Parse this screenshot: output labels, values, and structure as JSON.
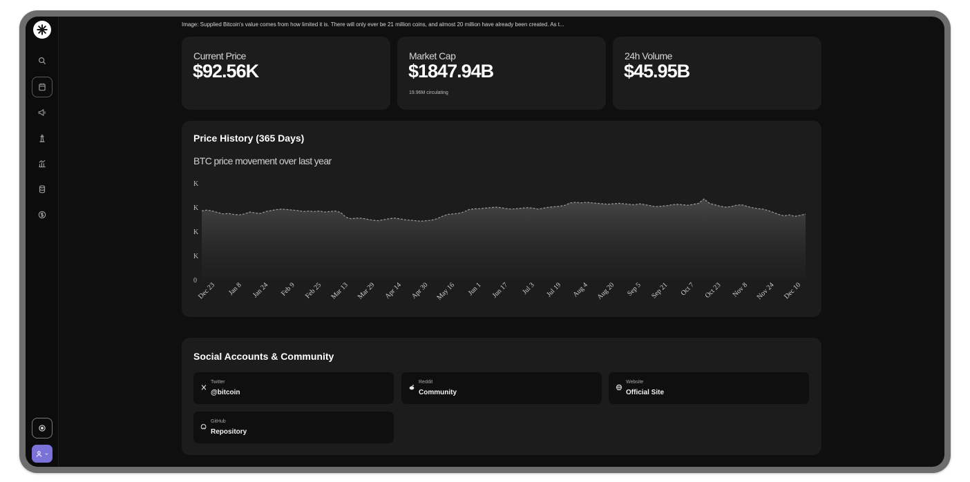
{
  "caption": "Image: Supplied Bitcoin's value comes from how limited it is. There will only ever be 21 million coins, and almost 20 million have already been created. As t...",
  "stats": [
    {
      "label": "Current Price",
      "value": "$92.56K",
      "sub": ""
    },
    {
      "label": "Market Cap",
      "value": "$1847.94B",
      "sub": "19.96M circulating"
    },
    {
      "label": "24h Volume",
      "value": "$45.95B",
      "sub": ""
    }
  ],
  "price_history": {
    "title": "Price History (365 Days)",
    "subtitle": "BTC price movement over last year"
  },
  "chart_data": {
    "type": "area",
    "y_tick_labels": [
      "K",
      "K",
      "K",
      "K",
      "0"
    ],
    "x_tick_labels": [
      "Dec 23",
      "Jan 8",
      "Jan 24",
      "Feb 9",
      "Feb 25",
      "Mar 13",
      "Mar 29",
      "Apr 14",
      "Apr 30",
      "May 16",
      "Jun 1",
      "Jun 17",
      "Jul 3",
      "Jul 19",
      "Aug 4",
      "Aug 20",
      "Sep 5",
      "Sep 21",
      "Oct 7",
      "Oct 23",
      "Nov 8",
      "Nov 24",
      "Dec 10"
    ],
    "ylim": [
      0,
      4
    ],
    "grid": false,
    "series": [
      {
        "values": [
          2.85,
          2.88,
          2.84,
          2.78,
          2.72,
          2.74,
          2.7,
          2.68,
          2.72,
          2.8,
          2.76,
          2.74,
          2.82,
          2.86,
          2.9,
          2.92,
          2.9,
          2.88,
          2.86,
          2.82,
          2.84,
          2.82,
          2.84,
          2.8,
          2.82,
          2.84,
          2.78,
          2.58,
          2.52,
          2.55,
          2.54,
          2.5,
          2.46,
          2.44,
          2.48,
          2.52,
          2.55,
          2.52,
          2.48,
          2.46,
          2.44,
          2.42,
          2.44,
          2.46,
          2.52,
          2.62,
          2.7,
          2.72,
          2.74,
          2.8,
          2.9,
          2.93,
          2.94,
          2.96,
          2.98,
          3.0,
          2.98,
          2.94,
          2.92,
          2.94,
          2.96,
          2.98,
          2.96,
          2.92,
          2.96,
          3.0,
          3.02,
          3.04,
          3.08,
          3.18,
          3.2,
          3.18,
          3.2,
          3.18,
          3.16,
          3.14,
          3.12,
          3.14,
          3.16,
          3.14,
          3.12,
          3.1,
          3.14,
          3.1,
          3.06,
          3.02,
          3.04,
          3.06,
          3.1,
          3.12,
          3.1,
          3.08,
          3.12,
          3.16,
          3.34,
          3.16,
          3.1,
          3.04,
          3.0,
          3.02,
          3.08,
          3.1,
          3.04,
          2.98,
          2.94,
          2.92,
          2.86,
          2.78,
          2.7,
          2.64,
          2.68,
          2.62,
          2.66,
          2.72
        ]
      }
    ]
  },
  "social": {
    "title": "Social Accounts & Community",
    "items": [
      {
        "icon": "x-icon",
        "label": "Twitter",
        "value": "@bitcoin"
      },
      {
        "icon": "reddit-icon",
        "label": "Reddit",
        "value": "Community"
      },
      {
        "icon": "globe-icon",
        "label": "Website",
        "value": "Official Site"
      },
      {
        "icon": "github-icon",
        "label": "GitHub",
        "value": "Repository"
      }
    ]
  },
  "sidebar": {
    "icons": [
      "search-icon",
      "calendar-icon",
      "megaphone-icon",
      "lighthouse-icon",
      "bar-chart-icon",
      "database-icon",
      "dollar-circle-icon"
    ]
  },
  "colors": {
    "background": "#0f0f0f",
    "card": "#1c1c1c",
    "accent": "#7b72d8"
  }
}
